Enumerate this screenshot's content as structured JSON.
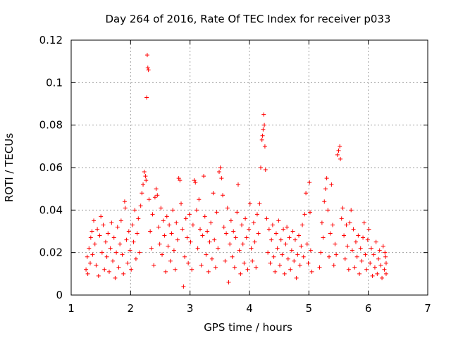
{
  "chart_data": {
    "type": "scatter",
    "title": "Day 264 of 2016, Rate Of TEC Index for receiver p033",
    "xlabel": "GPS time / hours",
    "ylabel": "ROTI / TECUs",
    "xlim": [
      1,
      7
    ],
    "ylim": [
      0,
      0.12
    ],
    "grid": true,
    "marker": "+",
    "color": "#ff0000",
    "x_ticks": [
      {
        "value": 1,
        "label": "1"
      },
      {
        "value": 2,
        "label": "2"
      },
      {
        "value": 3,
        "label": "3"
      },
      {
        "value": 4,
        "label": "4"
      },
      {
        "value": 5,
        "label": "5"
      },
      {
        "value": 6,
        "label": "6"
      },
      {
        "value": 7,
        "label": "7"
      }
    ],
    "y_ticks": [
      {
        "value": 0,
        "label": "0"
      },
      {
        "value": 0.02,
        "label": "0.02"
      },
      {
        "value": 0.04,
        "label": "0.04"
      },
      {
        "value": 0.06,
        "label": "0.06"
      },
      {
        "value": 0.08,
        "label": "0.08"
      },
      {
        "value": 0.1,
        "label": "0.1"
      },
      {
        "value": 0.12,
        "label": "0.12"
      }
    ],
    "series": [
      {
        "name": "ROTI",
        "points": [
          [
            1.25,
            0.012
          ],
          [
            1.27,
            0.018
          ],
          [
            1.28,
            0.01
          ],
          [
            1.3,
            0.022
          ],
          [
            1.32,
            0.015
          ],
          [
            1.33,
            0.027
          ],
          [
            1.35,
            0.03
          ],
          [
            1.36,
            0.019
          ],
          [
            1.38,
            0.035
          ],
          [
            1.4,
            0.024
          ],
          [
            1.42,
            0.014
          ],
          [
            1.44,
            0.031
          ],
          [
            1.46,
            0.009
          ],
          [
            1.48,
            0.028
          ],
          [
            1.5,
            0.037
          ],
          [
            1.52,
            0.02
          ],
          [
            1.54,
            0.033
          ],
          [
            1.56,
            0.012
          ],
          [
            1.58,
            0.025
          ],
          [
            1.6,
            0.018
          ],
          [
            1.62,
            0.029
          ],
          [
            1.64,
            0.011
          ],
          [
            1.66,
            0.022
          ],
          [
            1.68,
            0.034
          ],
          [
            1.7,
            0.016
          ],
          [
            1.72,
            0.027
          ],
          [
            1.74,
            0.008
          ],
          [
            1.76,
            0.02
          ],
          [
            1.78,
            0.032
          ],
          [
            1.8,
            0.013
          ],
          [
            1.82,
            0.024
          ],
          [
            1.84,
            0.035
          ],
          [
            1.86,
            0.019
          ],
          [
            1.88,
            0.01
          ],
          [
            1.9,
            0.044
          ],
          [
            1.91,
            0.041
          ],
          [
            1.93,
            0.026
          ],
          [
            1.95,
            0.015
          ],
          [
            1.97,
            0.03
          ],
          [
            1.99,
            0.021
          ],
          [
            2.01,
            0.012
          ],
          [
            2.03,
            0.033
          ],
          [
            2.05,
            0.025
          ],
          [
            2.07,
            0.04
          ],
          [
            2.09,
            0.017
          ],
          [
            2.11,
            0.029
          ],
          [
            2.13,
            0.036
          ],
          [
            2.15,
            0.02
          ],
          [
            2.17,
            0.042
          ],
          [
            2.19,
            0.048
          ],
          [
            2.21,
            0.052
          ],
          [
            2.23,
            0.058
          ],
          [
            2.25,
            0.056
          ],
          [
            2.26,
            0.054
          ],
          [
            2.27,
            0.093
          ],
          [
            2.28,
            0.113
          ],
          [
            2.29,
            0.107
          ],
          [
            2.3,
            0.106
          ],
          [
            2.31,
            0.045
          ],
          [
            2.33,
            0.03
          ],
          [
            2.35,
            0.022
          ],
          [
            2.37,
            0.038
          ],
          [
            2.39,
            0.014
          ],
          [
            2.41,
            0.046
          ],
          [
            2.43,
            0.05
          ],
          [
            2.45,
            0.047
          ],
          [
            2.47,
            0.032
          ],
          [
            2.49,
            0.024
          ],
          [
            2.51,
            0.041
          ],
          [
            2.53,
            0.019
          ],
          [
            2.55,
            0.035
          ],
          [
            2.57,
            0.028
          ],
          [
            2.59,
            0.011
          ],
          [
            2.61,
            0.037
          ],
          [
            2.63,
            0.023
          ],
          [
            2.65,
            0.033
          ],
          [
            2.67,
            0.016
          ],
          [
            2.69,
            0.029
          ],
          [
            2.71,
            0.04
          ],
          [
            2.73,
            0.021
          ],
          [
            2.75,
            0.012
          ],
          [
            2.77,
            0.034
          ],
          [
            2.79,
            0.026
          ],
          [
            2.81,
            0.055
          ],
          [
            2.83,
            0.054
          ],
          [
            2.85,
            0.043
          ],
          [
            2.87,
            0.031
          ],
          [
            2.89,
            0.004
          ],
          [
            2.91,
            0.018
          ],
          [
            2.93,
            0.036
          ],
          [
            2.95,
            0.027
          ],
          [
            2.97,
            0.015
          ],
          [
            2.99,
            0.038
          ],
          [
            3.01,
            0.025
          ],
          [
            3.03,
            0.012
          ],
          [
            3.05,
            0.033
          ],
          [
            3.07,
            0.054
          ],
          [
            3.09,
            0.053
          ],
          [
            3.11,
            0.04
          ],
          [
            3.13,
            0.022
          ],
          [
            3.15,
            0.045
          ],
          [
            3.17,
            0.031
          ],
          [
            3.19,
            0.014
          ],
          [
            3.21,
            0.028
          ],
          [
            3.23,
            0.056
          ],
          [
            3.25,
            0.037
          ],
          [
            3.27,
            0.019
          ],
          [
            3.29,
            0.03
          ],
          [
            3.31,
            0.011
          ],
          [
            3.33,
            0.025
          ],
          [
            3.35,
            0.034
          ],
          [
            3.37,
            0.017
          ],
          [
            3.39,
            0.048
          ],
          [
            3.41,
            0.026
          ],
          [
            3.43,
            0.013
          ],
          [
            3.45,
            0.039
          ],
          [
            3.47,
            0.022
          ],
          [
            3.49,
            0.058
          ],
          [
            3.51,
            0.06
          ],
          [
            3.53,
            0.055
          ],
          [
            3.55,
            0.047
          ],
          [
            3.57,
            0.032
          ],
          [
            3.59,
            0.016
          ],
          [
            3.61,
            0.029
          ],
          [
            3.63,
            0.041
          ],
          [
            3.65,
            0.006
          ],
          [
            3.67,
            0.024
          ],
          [
            3.69,
            0.035
          ],
          [
            3.71,
            0.018
          ],
          [
            3.73,
            0.03
          ],
          [
            3.75,
            0.013
          ],
          [
            3.77,
            0.027
          ],
          [
            3.79,
            0.039
          ],
          [
            3.81,
            0.052
          ],
          [
            3.83,
            0.021
          ],
          [
            3.85,
            0.01
          ],
          [
            3.87,
            0.033
          ],
          [
            3.89,
            0.024
          ],
          [
            3.91,
            0.015
          ],
          [
            3.93,
            0.036
          ],
          [
            3.95,
            0.027
          ],
          [
            3.97,
            0.012
          ],
          [
            3.99,
            0.031
          ],
          [
            4.01,
            0.043
          ],
          [
            4.03,
            0.022
          ],
          [
            4.05,
            0.016
          ],
          [
            4.07,
            0.034
          ],
          [
            4.09,
            0.025
          ],
          [
            4.11,
            0.013
          ],
          [
            4.13,
            0.038
          ],
          [
            4.15,
            0.029
          ],
          [
            4.17,
            0.043
          ],
          [
            4.19,
            0.06
          ],
          [
            4.21,
            0.073
          ],
          [
            4.22,
            0.075
          ],
          [
            4.23,
            0.078
          ],
          [
            4.24,
            0.085
          ],
          [
            4.25,
            0.08
          ],
          [
            4.26,
            0.07
          ],
          [
            4.27,
            0.059
          ],
          [
            4.29,
            0.036
          ],
          [
            4.31,
            0.02
          ],
          [
            4.33,
            0.031
          ],
          [
            4.35,
            0.015
          ],
          [
            4.37,
            0.026
          ],
          [
            4.39,
            0.033
          ],
          [
            4.41,
            0.018
          ],
          [
            4.43,
            0.011
          ],
          [
            4.45,
            0.029
          ],
          [
            4.47,
            0.022
          ],
          [
            4.49,
            0.035
          ],
          [
            4.51,
            0.014
          ],
          [
            4.53,
            0.026
          ],
          [
            4.55,
            0.019
          ],
          [
            4.57,
            0.031
          ],
          [
            4.59,
            0.01
          ],
          [
            4.61,
            0.024
          ],
          [
            4.63,
            0.032
          ],
          [
            4.65,
            0.017
          ],
          [
            4.67,
            0.027
          ],
          [
            4.69,
            0.012
          ],
          [
            4.71,
            0.021
          ],
          [
            4.73,
            0.03
          ],
          [
            4.75,
            0.016
          ],
          [
            4.77,
            0.026
          ],
          [
            4.79,
            0.008
          ],
          [
            4.81,
            0.019
          ],
          [
            4.83,
            0.028
          ],
          [
            4.85,
            0.014
          ],
          [
            4.87,
            0.023
          ],
          [
            4.89,
            0.033
          ],
          [
            4.91,
            0.018
          ],
          [
            4.93,
            0.038
          ],
          [
            4.95,
            0.048
          ],
          [
            4.97,
            0.024
          ],
          [
            4.99,
            0.015
          ],
          [
            5.01,
            0.053
          ],
          [
            5.02,
            0.039
          ],
          [
            5.03,
            0.021
          ],
          [
            5.05,
            0.011
          ],
          [
            5.18,
            0.013
          ],
          [
            5.2,
            0.02
          ],
          [
            5.22,
            0.034
          ],
          [
            5.24,
            0.027
          ],
          [
            5.26,
            0.044
          ],
          [
            5.28,
            0.05
          ],
          [
            5.3,
            0.055
          ],
          [
            5.32,
            0.04
          ],
          [
            5.34,
            0.018
          ],
          [
            5.36,
            0.029
          ],
          [
            5.38,
            0.052
          ],
          [
            5.4,
            0.033
          ],
          [
            5.42,
            0.014
          ],
          [
            5.44,
            0.024
          ],
          [
            5.46,
            0.019
          ],
          [
            5.48,
            0.066
          ],
          [
            5.5,
            0.068
          ],
          [
            5.52,
            0.07
          ],
          [
            5.53,
            0.064
          ],
          [
            5.55,
            0.036
          ],
          [
            5.57,
            0.041
          ],
          [
            5.59,
            0.028
          ],
          [
            5.61,
            0.017
          ],
          [
            5.63,
            0.033
          ],
          [
            5.65,
            0.023
          ],
          [
            5.67,
            0.012
          ],
          [
            5.69,
            0.034
          ],
          [
            5.71,
            0.04
          ],
          [
            5.73,
            0.021
          ],
          [
            5.75,
            0.031
          ],
          [
            5.77,
            0.013
          ],
          [
            5.79,
            0.025
          ],
          [
            5.81,
            0.018
          ],
          [
            5.83,
            0.028
          ],
          [
            5.85,
            0.01
          ],
          [
            5.87,
            0.022
          ],
          [
            5.89,
            0.016
          ],
          [
            5.91,
            0.027
          ],
          [
            5.93,
            0.034
          ],
          [
            5.95,
            0.019
          ],
          [
            5.97,
            0.012
          ],
          [
            5.99,
            0.026
          ],
          [
            6.01,
            0.031
          ],
          [
            6.03,
            0.015
          ],
          [
            6.05,
            0.022
          ],
          [
            6.07,
            0.009
          ],
          [
            6.09,
            0.019
          ],
          [
            6.11,
            0.013
          ],
          [
            6.13,
            0.025
          ],
          [
            6.15,
            0.01
          ],
          [
            6.17,
            0.017
          ],
          [
            6.19,
            0.021
          ],
          [
            6.21,
            0.014
          ],
          [
            6.23,
            0.008
          ],
          [
            6.25,
            0.023
          ],
          [
            6.27,
            0.012
          ],
          [
            6.29,
            0.018
          ],
          [
            6.3,
            0.01
          ],
          [
            6.3,
            0.015
          ],
          [
            6.28,
            0.02
          ]
        ]
      }
    ]
  }
}
